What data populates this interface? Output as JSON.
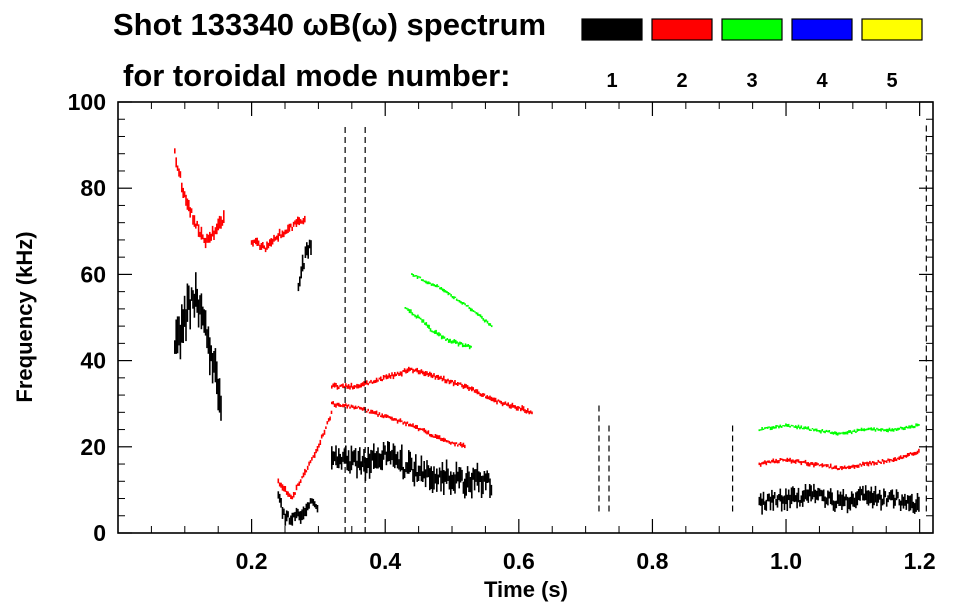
{
  "chart_data": {
    "type": "heatmap",
    "title_line1": "Shot 133340 ωB(ω) spectrum",
    "title_line2": "for toroidal mode number:",
    "xlabel": "Time (s)",
    "ylabel": "Frequency (kHz)",
    "xlim": [
      0.0,
      1.22
    ],
    "ylim": [
      0,
      100
    ],
    "xticks": [
      "0.2",
      "0.4",
      "0.6",
      "0.8",
      "1.0",
      "1.2"
    ],
    "yticks": [
      "0",
      "20",
      "40",
      "60",
      "80",
      "100"
    ],
    "legend": [
      {
        "label": "1",
        "color": "#000000"
      },
      {
        "label": "2",
        "color": "#ff0000"
      },
      {
        "label": "3",
        "color": "#00ff00"
      },
      {
        "label": "4",
        "color": "#0000ff"
      },
      {
        "label": "5",
        "color": "#ffff00"
      }
    ],
    "features": [
      {
        "mode": "1",
        "t": [
          0.085,
          0.095,
          0.105,
          0.115,
          0.125,
          0.135,
          0.145,
          0.155
        ],
        "f": [
          42,
          47,
          52,
          55,
          50,
          44,
          38,
          30
        ],
        "spread": 9
      },
      {
        "mode": "1",
        "t": [
          0.24,
          0.25,
          0.26,
          0.27,
          0.28,
          0.29,
          0.3
        ],
        "f": [
          8,
          4,
          3,
          4,
          5,
          7,
          6
        ],
        "spread": 3
      },
      {
        "mode": "1",
        "t": [
          0.27,
          0.28,
          0.29
        ],
        "f": [
          58,
          64,
          67
        ],
        "spread": 4
      },
      {
        "mode": "1",
        "t": [
          0.32,
          0.34,
          0.36,
          0.38,
          0.4,
          0.42,
          0.44,
          0.46,
          0.48,
          0.5,
          0.52,
          0.54,
          0.56
        ],
        "f": [
          18,
          17,
          16,
          17,
          18,
          16,
          15,
          14,
          13,
          13,
          12,
          12,
          11
        ],
        "spread": 6
      },
      {
        "mode": "1",
        "t": [
          0.96,
          0.98,
          1.0,
          1.02,
          1.04,
          1.06,
          1.08,
          1.1,
          1.12,
          1.14,
          1.16,
          1.18,
          1.2
        ],
        "f": [
          7,
          8,
          8,
          8,
          9,
          8,
          7,
          8,
          9,
          8,
          8,
          7,
          6
        ],
        "spread": 4
      },
      {
        "mode": "2",
        "t": [
          0.085,
          0.1,
          0.115,
          0.13,
          0.145,
          0.16
        ],
        "f": [
          88,
          78,
          72,
          68,
          70,
          73
        ],
        "spread": 3
      },
      {
        "mode": "2",
        "t": [
          0.2,
          0.22,
          0.24,
          0.26,
          0.28
        ],
        "f": [
          68,
          66,
          69,
          71,
          73
        ],
        "spread": 2
      },
      {
        "mode": "2",
        "t": [
          0.24,
          0.26,
          0.28,
          0.3,
          0.32
        ],
        "f": [
          12,
          8,
          14,
          20,
          28
        ],
        "spread": 1.5
      },
      {
        "mode": "2",
        "t": [
          0.32,
          0.36,
          0.4,
          0.44,
          0.48,
          0.52,
          0.56,
          0.6,
          0.62
        ],
        "f": [
          34,
          34,
          36,
          38,
          36,
          34,
          31,
          29,
          28
        ],
        "spread": 1.2
      },
      {
        "mode": "2",
        "t": [
          0.32,
          0.36,
          0.4,
          0.44,
          0.48,
          0.52
        ],
        "f": [
          30,
          29,
          27,
          25,
          22,
          20
        ],
        "spread": 1
      },
      {
        "mode": "2",
        "t": [
          0.96,
          1.0,
          1.04,
          1.08,
          1.12,
          1.16,
          1.2
        ],
        "f": [
          16,
          17,
          16,
          15,
          16,
          17,
          19
        ],
        "spread": 1
      },
      {
        "mode": "3",
        "t": [
          0.43,
          0.45,
          0.47,
          0.49,
          0.51,
          0.53
        ],
        "f": [
          52,
          50,
          47,
          45,
          44,
          43
        ],
        "spread": 1
      },
      {
        "mode": "3",
        "t": [
          0.44,
          0.48,
          0.52,
          0.56
        ],
        "f": [
          60,
          57,
          53,
          48
        ],
        "spread": 0.8
      },
      {
        "mode": "3",
        "t": [
          0.96,
          1.0,
          1.04,
          1.08,
          1.12,
          1.16,
          1.2
        ],
        "f": [
          24,
          25,
          24,
          23,
          24,
          24,
          25
        ],
        "spread": 0.8
      }
    ],
    "transients": [
      {
        "t": 0.34,
        "fmin": 0,
        "fmax": 95
      },
      {
        "t": 0.37,
        "fmin": 0,
        "fmax": 95
      },
      {
        "t": 0.72,
        "fmin": 5,
        "fmax": 30
      },
      {
        "t": 0.735,
        "fmin": 5,
        "fmax": 25
      },
      {
        "t": 0.92,
        "fmin": 5,
        "fmax": 25
      },
      {
        "t": 1.21,
        "fmin": 5,
        "fmax": 95
      }
    ]
  }
}
